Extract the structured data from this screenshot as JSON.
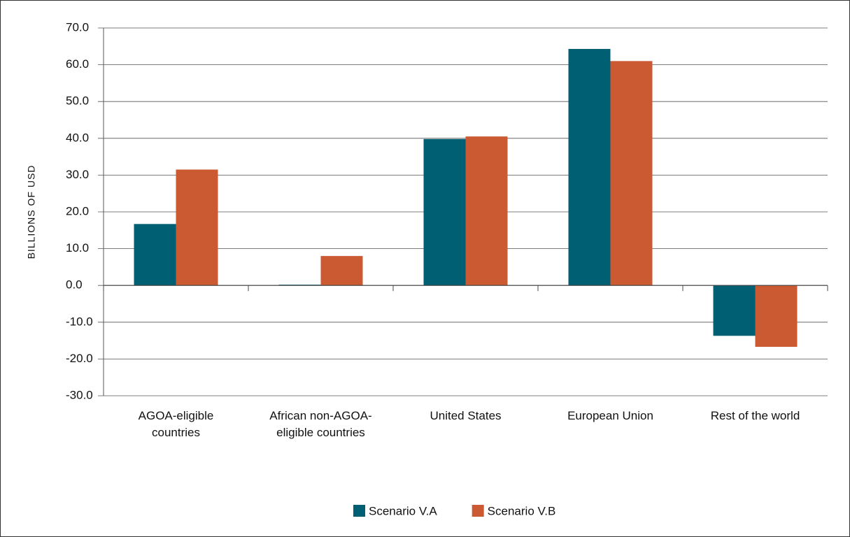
{
  "chart_data": {
    "type": "bar",
    "y_label": "BILLIONS OF USD",
    "categories": [
      "AGOA-eligible countries",
      "African non-AGOA-eligible countries",
      "United States",
      "European Union",
      "Rest of the world"
    ],
    "series": [
      {
        "name": "Scenario V.A",
        "color": "#005f73",
        "values": [
          16.7,
          0.2,
          39.8,
          64.3,
          -13.7
        ]
      },
      {
        "name": "Scenario V.B",
        "color": "#cb5a32",
        "values": [
          31.5,
          8.0,
          40.5,
          61.0,
          -16.7
        ]
      }
    ],
    "ylim": [
      -30,
      70
    ],
    "yticks": [
      {
        "value": -30,
        "label": "-30.0"
      },
      {
        "value": -20,
        "label": "-20.0"
      },
      {
        "value": -10,
        "label": "-10.0"
      },
      {
        "value": 0,
        "label": "0.0"
      },
      {
        "value": 10,
        "label": "10.0"
      },
      {
        "value": 20,
        "label": "20.0"
      },
      {
        "value": 30,
        "label": "30.0"
      },
      {
        "value": 40,
        "label": "40.0"
      },
      {
        "value": 50,
        "label": "50.0"
      },
      {
        "value": 60,
        "label": "60.0"
      },
      {
        "value": 70,
        "label": "70.0"
      }
    ],
    "grid": true
  }
}
